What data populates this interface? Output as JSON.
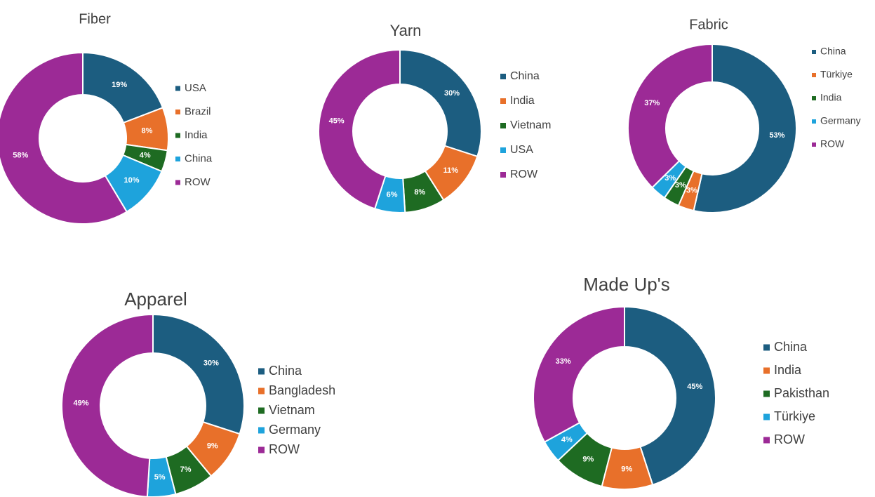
{
  "chart_data": [
    {
      "type": "donut",
      "title": "Fiber",
      "categories": [
        "USA",
        "Brazil",
        "India",
        "China",
        "ROW"
      ],
      "values": [
        19,
        8,
        4,
        10,
        58
      ],
      "value_labels": [
        "19%",
        "8%",
        "4%",
        "10%",
        "58%"
      ],
      "colors": [
        "#1c5d80",
        "#e8702a",
        "#1e6b22",
        "#1ea3dc",
        "#9c2a96"
      ]
    },
    {
      "type": "donut",
      "title": "Yarn",
      "categories": [
        "China",
        "India",
        "Vietnam",
        "USA",
        "ROW"
      ],
      "values": [
        30,
        11,
        8,
        6,
        45
      ],
      "value_labels": [
        "30%",
        "11%",
        "8%",
        "6%",
        "45%"
      ],
      "colors": [
        "#1c5d80",
        "#e8702a",
        "#1e6b22",
        "#1ea3dc",
        "#9c2a96"
      ]
    },
    {
      "type": "donut",
      "title": "Fabric",
      "categories": [
        "China",
        "Türkiye",
        "India",
        "Germany",
        "ROW"
      ],
      "values": [
        53,
        3,
        3,
        3,
        37
      ],
      "value_labels": [
        "53%",
        "3%",
        "3%",
        "3%",
        "37%"
      ],
      "colors": [
        "#1c5d80",
        "#e8702a",
        "#1e6b22",
        "#1ea3dc",
        "#9c2a96"
      ]
    },
    {
      "type": "donut",
      "title": "Apparel",
      "categories": [
        "China",
        "Bangladesh",
        "Vietnam",
        "Germany",
        "ROW"
      ],
      "values": [
        30,
        9,
        7,
        5,
        49
      ],
      "value_labels": [
        "30%",
        "9%",
        "7%",
        "5%",
        "49%"
      ],
      "colors": [
        "#1c5d80",
        "#e8702a",
        "#1e6b22",
        "#1ea3dc",
        "#9c2a96"
      ]
    },
    {
      "type": "donut",
      "title": "Made Up's",
      "categories": [
        "China",
        "India",
        "Pakisthan",
        "Türkiye",
        "ROW"
      ],
      "values": [
        45,
        9,
        9,
        4,
        33
      ],
      "value_labels": [
        "45%",
        "9%",
        "9%",
        "4%",
        "33%"
      ],
      "colors": [
        "#1c5d80",
        "#e8702a",
        "#1e6b22",
        "#1ea3dc",
        "#9c2a96"
      ]
    }
  ]
}
